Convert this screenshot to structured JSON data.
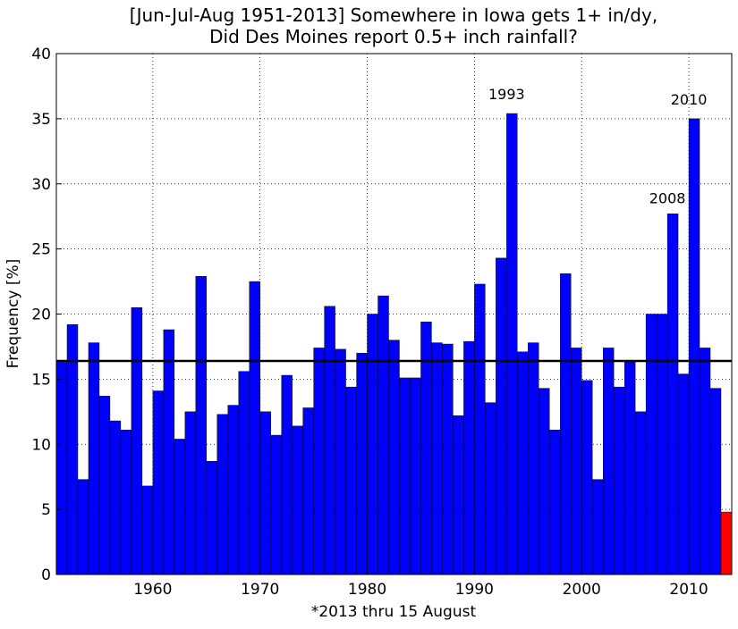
{
  "chart_data": {
    "type": "bar",
    "title": [
      "[Jun-Jul-Aug 1951-2013] Somewhere in Iowa gets 1+ in/dy,",
      "Did Des Moines report 0.5+ inch rainfall?"
    ],
    "xlabel": "*2013 thru 15 August",
    "ylabel": "Frequency [%]",
    "x": [
      1951,
      1952,
      1953,
      1954,
      1955,
      1956,
      1957,
      1958,
      1959,
      1960,
      1961,
      1962,
      1963,
      1964,
      1965,
      1966,
      1967,
      1968,
      1969,
      1970,
      1971,
      1972,
      1973,
      1974,
      1975,
      1976,
      1977,
      1978,
      1979,
      1980,
      1981,
      1982,
      1983,
      1984,
      1985,
      1986,
      1987,
      1988,
      1989,
      1990,
      1991,
      1992,
      1993,
      1994,
      1995,
      1996,
      1997,
      1998,
      1999,
      2000,
      2001,
      2002,
      2003,
      2004,
      2005,
      2006,
      2007,
      2008,
      2009,
      2010,
      2011,
      2012,
      2013
    ],
    "values": [
      16.3,
      19.2,
      7.3,
      17.8,
      13.7,
      11.8,
      11.1,
      20.5,
      6.8,
      14.1,
      18.8,
      10.4,
      12.5,
      22.9,
      8.7,
      12.3,
      13.0,
      15.6,
      22.5,
      12.5,
      10.7,
      15.3,
      11.4,
      12.8,
      17.4,
      20.6,
      17.3,
      14.4,
      17.0,
      20.0,
      21.4,
      18.0,
      15.1,
      15.1,
      19.4,
      17.8,
      17.7,
      12.2,
      17.9,
      22.3,
      13.2,
      24.3,
      35.4,
      17.1,
      17.8,
      14.3,
      11.1,
      23.1,
      17.4,
      14.9,
      7.3,
      17.4,
      14.4,
      16.4,
      12.5,
      20.0,
      20.0,
      27.7,
      15.4,
      35.0,
      17.4,
      14.3,
      4.8
    ],
    "colors": [
      "#0000ff",
      "#0000ff",
      "#0000ff",
      "#0000ff",
      "#0000ff",
      "#0000ff",
      "#0000ff",
      "#0000ff",
      "#0000ff",
      "#0000ff",
      "#0000ff",
      "#0000ff",
      "#0000ff",
      "#0000ff",
      "#0000ff",
      "#0000ff",
      "#0000ff",
      "#0000ff",
      "#0000ff",
      "#0000ff",
      "#0000ff",
      "#0000ff",
      "#0000ff",
      "#0000ff",
      "#0000ff",
      "#0000ff",
      "#0000ff",
      "#0000ff",
      "#0000ff",
      "#0000ff",
      "#0000ff",
      "#0000ff",
      "#0000ff",
      "#0000ff",
      "#0000ff",
      "#0000ff",
      "#0000ff",
      "#0000ff",
      "#0000ff",
      "#0000ff",
      "#0000ff",
      "#0000ff",
      "#0000ff",
      "#0000ff",
      "#0000ff",
      "#0000ff",
      "#0000ff",
      "#0000ff",
      "#0000ff",
      "#0000ff",
      "#0000ff",
      "#0000ff",
      "#0000ff",
      "#0000ff",
      "#0000ff",
      "#0000ff",
      "#0000ff",
      "#0000ff",
      "#0000ff",
      "#0000ff",
      "#0000ff",
      "#0000ff",
      "#ff0000"
    ],
    "reference_line": {
      "value": 16.4,
      "color": "#000000"
    },
    "annotations": [
      {
        "text": "1993",
        "x": 1993,
        "y": 36.5
      },
      {
        "text": "2008",
        "x": 2008,
        "y": 28.5
      },
      {
        "text": "2010",
        "x": 2010,
        "y": 36.1
      }
    ],
    "xlim": [
      1951,
      2014
    ],
    "xticks": [
      1960,
      1970,
      1980,
      1990,
      2000,
      2010
    ],
    "ylim": [
      0,
      40
    ],
    "yticks": [
      0,
      5,
      10,
      15,
      20,
      25,
      30,
      35,
      40
    ],
    "grid": true
  }
}
